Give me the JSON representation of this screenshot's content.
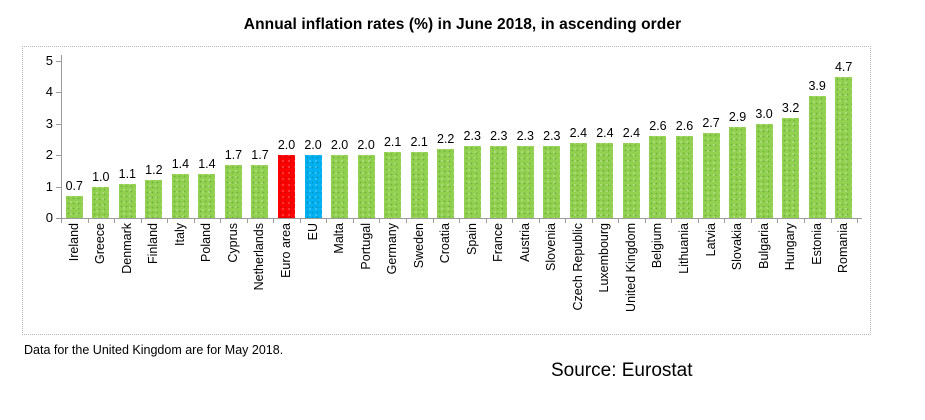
{
  "title": "Annual inflation rates (%) in June 2018, in ascending order",
  "footnote": "Data for the United Kingdom are for May 2018.",
  "source": "Source: Eurostat",
  "colors": {
    "bar_default": "#92D050",
    "axis": "#9b9b9b",
    "frame_border": "#b8b8b8",
    "text": "#000000"
  },
  "chart_data": {
    "type": "bar",
    "title": "Annual inflation rates (%) in June 2018, in ascending order",
    "categories": [
      "Ireland",
      "Greece",
      "Denmark",
      "Finland",
      "Italy",
      "Poland",
      "Cyprus",
      "Netherlands",
      "Euro area",
      "EU",
      "Malta",
      "Portugal",
      "Germany",
      "Sweden",
      "Croatia",
      "Spain",
      "France",
      "Austria",
      "Slovenia",
      "Czech Republic",
      "Luxembourg",
      "United Kingdom",
      "Belgium",
      "Lithuania",
      "Latvia",
      "Slovakia",
      "Bulgaria",
      "Hungary",
      "Estonia",
      "Romania"
    ],
    "values": [
      0.7,
      1.0,
      1.1,
      1.2,
      1.4,
      1.4,
      1.7,
      1.7,
      2.0,
      2.0,
      2.0,
      2.0,
      2.1,
      2.1,
      2.2,
      2.3,
      2.3,
      2.3,
      2.3,
      2.4,
      2.4,
      2.4,
      2.6,
      2.6,
      2.7,
      2.9,
      3.0,
      3.2,
      3.9,
      4.7
    ],
    "highlight_colors": {
      "Euro area": "#FF0000",
      "EU": "#00B0F0"
    },
    "xlabel": "",
    "ylabel": "",
    "ylim": [
      0,
      5
    ],
    "yticks": [
      0,
      1,
      2,
      3,
      4,
      5
    ],
    "grid": false,
    "value_labels": true,
    "legend": "none",
    "annotations": [
      "Data for the United Kingdom are for May 2018.",
      "Source: Eurostat"
    ]
  }
}
